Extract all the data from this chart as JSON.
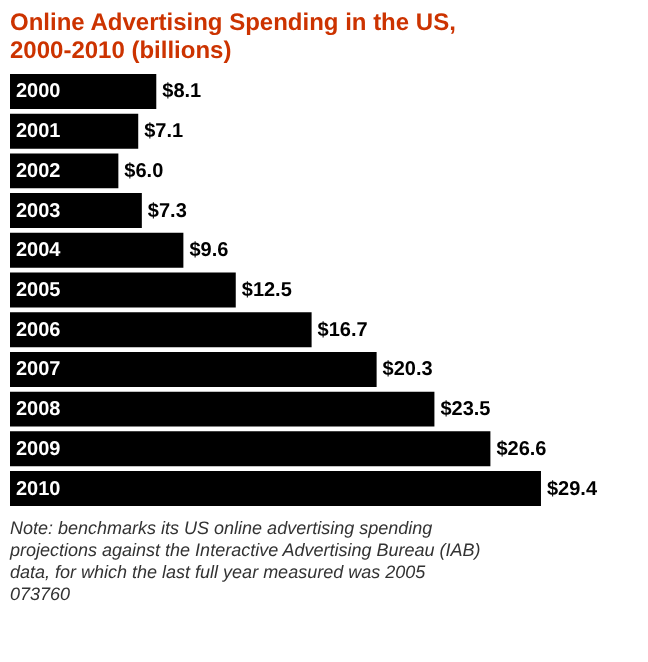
{
  "chart_data": {
    "type": "bar",
    "orientation": "horizontal",
    "title": "Online Advertising Spending in the US, 2000-2010 (billions)",
    "categories": [
      "2000",
      "2001",
      "2002",
      "2003",
      "2004",
      "2005",
      "2006",
      "2007",
      "2008",
      "2009",
      "2010"
    ],
    "values": [
      8.1,
      7.1,
      6.0,
      7.3,
      9.6,
      12.5,
      16.7,
      20.3,
      23.5,
      26.6,
      29.4
    ],
    "value_labels": [
      "$8.1",
      "$7.1",
      "$6.0",
      "$7.3",
      "$9.6",
      "$12.5",
      "$16.7",
      "$20.3",
      "$23.5",
      "$26.6",
      "$29.4"
    ],
    "color": "#000000",
    "annotations": [
      "Note: benchmarks its US online advertising spending projections against the Interactive Advertising Bureau (IAB) data, for which the last full year measured was 2005",
      "073760"
    ]
  }
}
